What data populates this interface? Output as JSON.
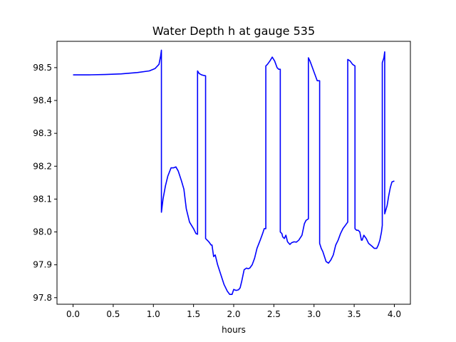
{
  "chart_data": {
    "type": "line",
    "title": "Water Depth h at gauge 535",
    "xlabel": "hours",
    "ylabel": "",
    "xlim": [
      -0.2,
      4.2
    ],
    "ylim": [
      97.78,
      98.58
    ],
    "xticks": [
      0.0,
      0.5,
      1.0,
      1.5,
      2.0,
      2.5,
      3.0,
      3.5,
      4.0
    ],
    "xtick_labels": [
      "0.0",
      "0.5",
      "1.0",
      "1.5",
      "2.0",
      "2.5",
      "3.0",
      "3.5",
      "4.0"
    ],
    "yticks": [
      97.8,
      97.9,
      98.0,
      98.1,
      98.2,
      98.3,
      98.4,
      98.5
    ],
    "ytick_labels": [
      "97.8",
      "97.9",
      "98.0",
      "98.1",
      "98.2",
      "98.3",
      "98.4",
      "98.5"
    ],
    "grid": false,
    "series": [
      {
        "color": "#0000ff",
        "x": [
          0.0,
          0.2,
          0.4,
          0.6,
          0.8,
          0.95,
          1.02,
          1.07,
          1.09,
          1.1,
          1.1,
          1.12,
          1.15,
          1.18,
          1.22,
          1.25,
          1.28,
          1.31,
          1.35,
          1.38,
          1.41,
          1.45,
          1.5,
          1.53,
          1.55,
          1.55,
          1.57,
          1.6,
          1.63,
          1.65,
          1.65,
          1.67,
          1.69,
          1.72,
          1.73,
          1.75,
          1.77,
          1.8,
          1.84,
          1.88,
          1.92,
          1.95,
          1.98,
          2.0,
          2.03,
          2.06,
          2.08,
          2.1,
          2.13,
          2.16,
          2.18,
          2.2,
          2.23,
          2.26,
          2.29,
          2.33,
          2.36,
          2.38,
          2.4,
          2.4,
          2.42,
          2.45,
          2.48,
          2.51,
          2.54,
          2.56,
          2.58,
          2.58,
          2.6,
          2.61,
          2.63,
          2.65,
          2.67,
          2.7,
          2.72,
          2.75,
          2.78,
          2.81,
          2.85,
          2.88,
          2.9,
          2.93,
          2.93,
          2.95,
          2.98,
          3.01,
          3.04,
          3.07,
          3.07,
          3.09,
          3.11,
          3.13,
          3.15,
          3.18,
          3.21,
          3.24,
          3.27,
          3.3,
          3.33,
          3.36,
          3.39,
          3.42,
          3.42,
          3.45,
          3.48,
          3.51,
          3.51,
          3.53,
          3.55,
          3.57,
          3.59,
          3.6,
          3.62,
          3.65,
          3.68,
          3.72,
          3.75,
          3.78,
          3.8,
          3.82,
          3.84,
          3.85,
          3.85,
          3.87,
          3.88,
          3.88,
          3.91,
          3.93,
          3.95,
          3.97,
          4.0
        ],
        "y": [
          98.478,
          98.478,
          98.479,
          98.481,
          98.485,
          98.49,
          98.497,
          98.51,
          98.535,
          98.553,
          98.06,
          98.1,
          98.14,
          98.17,
          98.195,
          98.195,
          98.198,
          98.185,
          98.155,
          98.13,
          98.07,
          98.03,
          98.01,
          97.995,
          97.993,
          98.49,
          98.482,
          98.478,
          98.476,
          98.475,
          97.98,
          97.975,
          97.97,
          97.96,
          97.96,
          97.925,
          97.93,
          97.9,
          97.87,
          97.84,
          97.82,
          97.81,
          97.81,
          97.825,
          97.822,
          97.824,
          97.83,
          97.85,
          97.885,
          97.89,
          97.888,
          97.89,
          97.9,
          97.92,
          97.95,
          97.975,
          97.995,
          98.01,
          98.01,
          98.505,
          98.51,
          98.52,
          98.532,
          98.52,
          98.5,
          98.495,
          98.495,
          98.0,
          97.995,
          97.985,
          97.98,
          97.99,
          97.97,
          97.962,
          97.967,
          97.97,
          97.969,
          97.975,
          97.99,
          98.025,
          98.035,
          98.04,
          98.53,
          98.52,
          98.5,
          98.48,
          98.46,
          98.46,
          97.965,
          97.95,
          97.94,
          97.925,
          97.91,
          97.905,
          97.915,
          97.93,
          97.96,
          97.975,
          97.995,
          98.01,
          98.02,
          98.03,
          98.525,
          98.52,
          98.51,
          98.505,
          98.01,
          98.005,
          98.005,
          98.0,
          97.975,
          97.975,
          97.99,
          97.98,
          97.965,
          97.957,
          97.95,
          97.95,
          97.96,
          97.975,
          98.0,
          98.02,
          98.515,
          98.53,
          98.548,
          98.055,
          98.08,
          98.11,
          98.135,
          98.152,
          98.155
        ]
      }
    ]
  }
}
